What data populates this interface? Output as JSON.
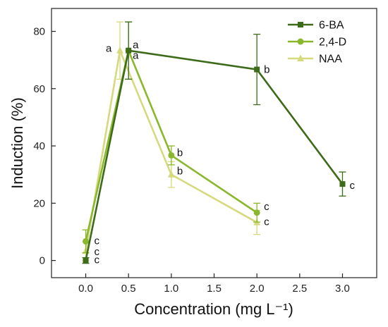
{
  "chart_data": {
    "type": "line",
    "xlabel": "Concentration (mg L⁻¹)",
    "ylabel": "Induction (%)",
    "xlim": [
      -0.4,
      3.4
    ],
    "ylim": [
      -6,
      88
    ],
    "x_ticks": [
      "0.0",
      "0.5",
      "1.0",
      "1.5",
      "2.0",
      "2.5",
      "3.0"
    ],
    "y_ticks": [
      "0",
      "20",
      "40",
      "60",
      "80"
    ],
    "grid": false,
    "legend_position": "top-right",
    "series": [
      {
        "name": "6-BA",
        "color": "#3d6b1a",
        "marker": "square",
        "points": [
          {
            "x": 0.0,
            "y": 0,
            "err": 1,
            "label": "c"
          },
          {
            "x": 0.5,
            "y": 73.3,
            "err": 10,
            "label": "a"
          },
          {
            "x": 2.0,
            "y": 66.7,
            "err": 12.3,
            "label": "b"
          },
          {
            "x": 3.0,
            "y": 26.7,
            "err": 4.2,
            "label": "c"
          }
        ]
      },
      {
        "name": "2,4-D",
        "color": "#8ab82d",
        "marker": "circle",
        "points": [
          {
            "x": 0.0,
            "y": 6.7,
            "err": 4.0,
            "label": "c"
          },
          {
            "x": 0.5,
            "y": 73.3,
            "err": 10,
            "label": "a"
          },
          {
            "x": 1.0,
            "y": 36.7,
            "err": 3.3,
            "label": "b"
          },
          {
            "x": 2.0,
            "y": 16.7,
            "err": 3.3,
            "label": "c"
          }
        ]
      },
      {
        "name": "NAA",
        "color": "#d7d97e",
        "marker": "triangle",
        "points": [
          {
            "x": 0.0,
            "y": 3.3,
            "err": 3.3,
            "label": "c"
          },
          {
            "x": 0.4,
            "y": 73.3,
            "err": 10,
            "label": "a"
          },
          {
            "x": 1.0,
            "y": 30.0,
            "err": 4.5,
            "label": "b"
          },
          {
            "x": 2.0,
            "y": 13.3,
            "err": 4.2,
            "label": "c"
          }
        ]
      }
    ]
  }
}
